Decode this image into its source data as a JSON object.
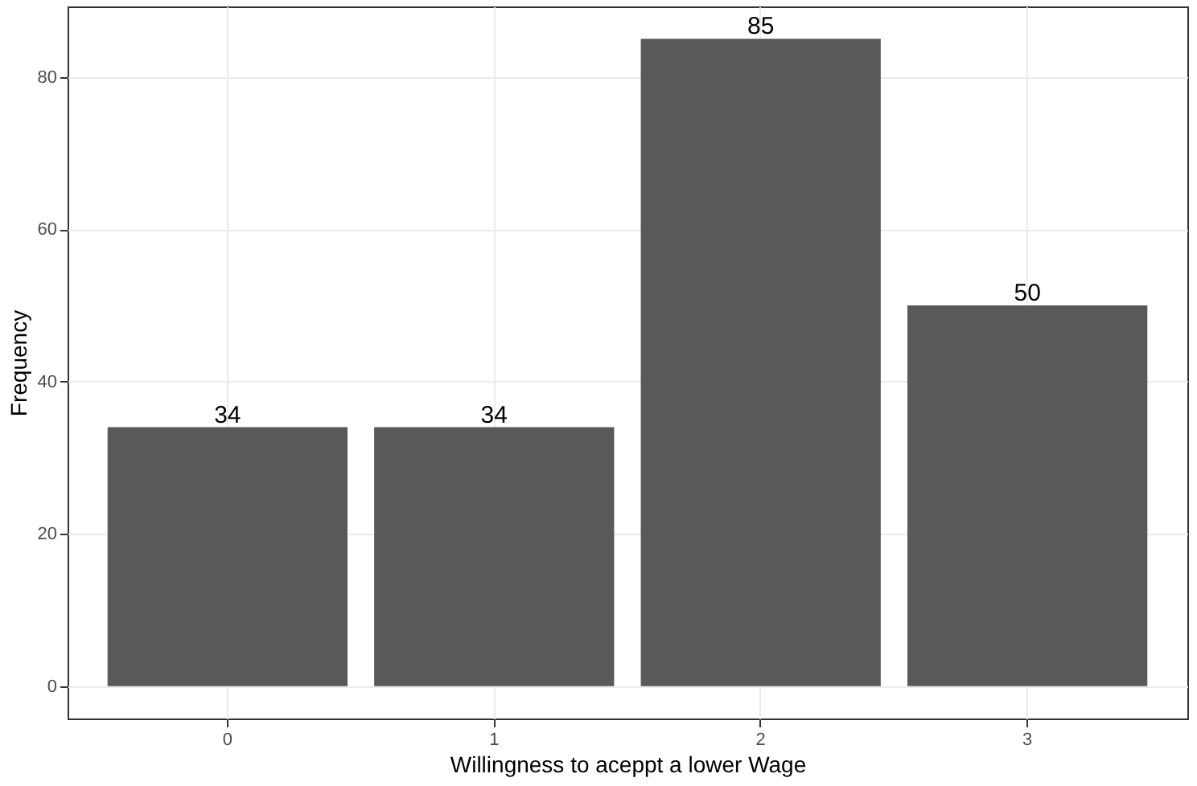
{
  "chart_data": {
    "type": "bar",
    "xlabel": "Willingness to aceppt a lower Wage",
    "ylabel": "Frequency",
    "categories": [
      "0",
      "1",
      "2",
      "3"
    ],
    "values": [
      34,
      34,
      85,
      50
    ],
    "color": "#595959",
    "ylim": [
      -4.25,
      89.25
    ],
    "yticks": [
      0,
      20,
      40,
      60,
      80
    ],
    "grid": true,
    "data_labels": true
  }
}
